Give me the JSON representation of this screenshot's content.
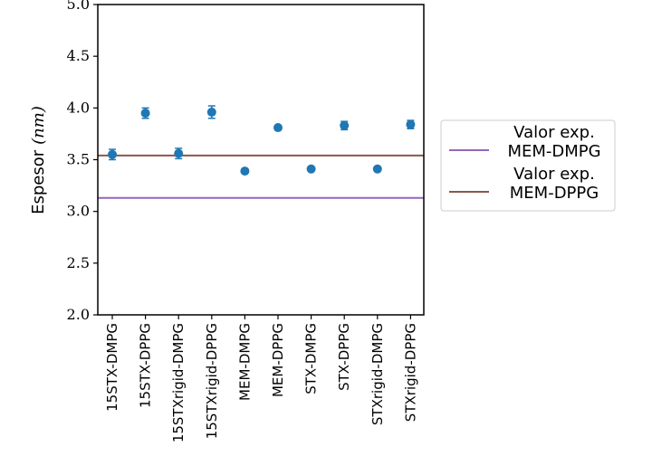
{
  "chart_data": {
    "type": "scatter",
    "title": "",
    "xlabel": "",
    "ylabel": "Espesor",
    "ylabel_unit": "(nm)",
    "ylim": [
      2.0,
      5.0
    ],
    "yticks": [
      "2.0",
      "2.5",
      "3.0",
      "3.5",
      "4.0",
      "4.5",
      "5.0"
    ],
    "grid": false,
    "legend_position": "right",
    "categories": [
      "15STX-DMPG",
      "15STX-DPPG",
      "15STXrigid-DMPG",
      "15STXrigid-DPPG",
      "MEM-DMPG",
      "MEM-DPPG",
      "STX-DMPG",
      "STX-DPPG",
      "STXrigid-DMPG",
      "STXrigid-DPPG"
    ],
    "series": [
      {
        "color": "#1f77b4",
        "values": [
          3.55,
          3.95,
          3.56,
          3.96,
          3.39,
          3.81,
          3.41,
          3.83,
          3.41,
          3.84
        ],
        "errors": [
          0.05,
          0.05,
          0.05,
          0.06,
          0.0,
          0.0,
          0.0,
          0.04,
          0.0,
          0.04
        ]
      }
    ],
    "reference_lines": [
      {
        "line1": "Valor exp.",
        "line2": "MEM-DMPG",
        "value": 3.13,
        "color": "#9467bd"
      },
      {
        "line1": "Valor exp.",
        "line2": "MEM-DPPG",
        "value": 3.54,
        "color": "#8c564b"
      }
    ]
  }
}
